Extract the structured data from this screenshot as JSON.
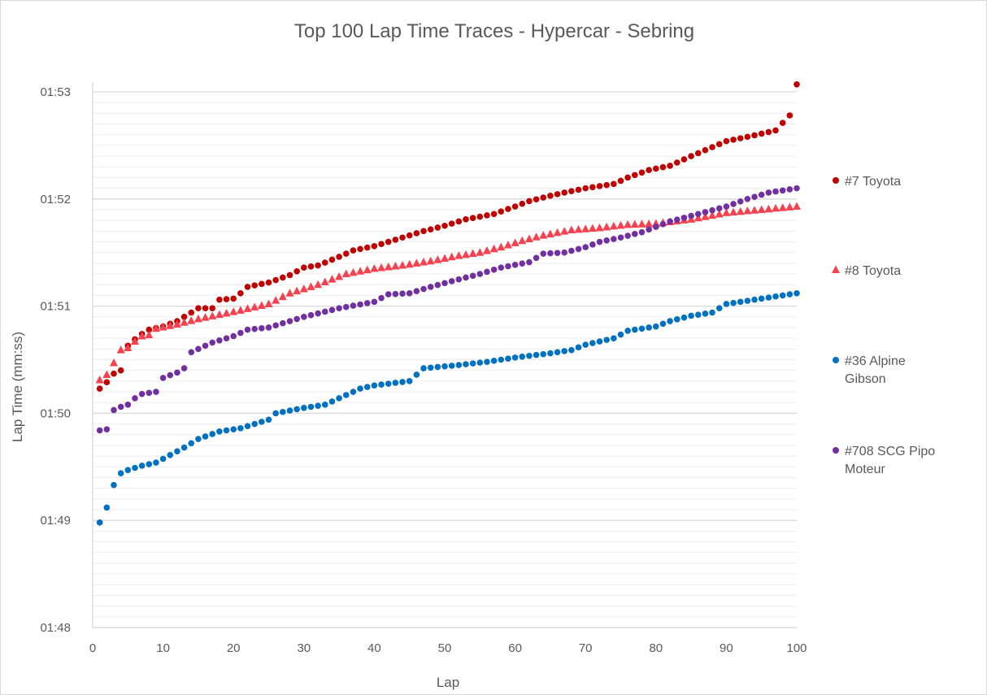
{
  "chart_data": {
    "type": "scatter",
    "title": "Top 100 Lap Time Traces - Hypercar - Sebring",
    "xlabel": "Lap",
    "ylabel": "Lap Time (mm:ss)",
    "xlim": [
      0,
      100
    ],
    "ylim": [
      108,
      113
    ],
    "x_ticks": [
      0,
      10,
      20,
      30,
      40,
      50,
      60,
      70,
      80,
      90,
      100
    ],
    "y_ticks": [
      {
        "value": 108,
        "label": "01:48"
      },
      {
        "value": 109,
        "label": "01:49"
      },
      {
        "value": 110,
        "label": "01:50"
      },
      {
        "value": 111,
        "label": "01:51"
      },
      {
        "value": 112,
        "label": "01:52"
      },
      {
        "value": 113,
        "label": "01:53"
      }
    ],
    "y_unit": "seconds",
    "grid": {
      "major": true,
      "minor_step": 0.1
    },
    "legend_position": "right",
    "series": [
      {
        "name": "#7 Toyota",
        "color": "#c00000",
        "marker": "circle",
        "knots": [
          [
            1,
            110.23
          ],
          [
            2,
            110.29
          ],
          [
            3,
            110.37
          ],
          [
            4,
            110.4
          ],
          [
            5,
            110.63
          ],
          [
            6,
            110.69
          ],
          [
            7,
            110.74
          ],
          [
            8,
            110.78
          ],
          [
            10,
            110.81
          ],
          [
            12,
            110.86
          ],
          [
            14,
            110.94
          ],
          [
            15,
            110.98
          ],
          [
            17,
            110.98
          ],
          [
            18,
            111.06
          ],
          [
            20,
            111.07
          ],
          [
            21,
            111.12
          ],
          [
            22,
            111.18
          ],
          [
            25,
            111.22
          ],
          [
            28,
            111.29
          ],
          [
            30,
            111.36
          ],
          [
            32,
            111.38
          ],
          [
            35,
            111.46
          ],
          [
            37,
            111.52
          ],
          [
            40,
            111.56
          ],
          [
            43,
            111.62
          ],
          [
            47,
            111.7
          ],
          [
            50,
            111.75
          ],
          [
            53,
            111.81
          ],
          [
            57,
            111.86
          ],
          [
            60,
            111.93
          ],
          [
            62,
            111.98
          ],
          [
            65,
            112.03
          ],
          [
            67,
            112.06
          ],
          [
            70,
            112.1
          ],
          [
            74,
            112.14
          ],
          [
            76,
            112.2
          ],
          [
            79,
            112.27
          ],
          [
            82,
            112.31
          ],
          [
            85,
            112.4
          ],
          [
            90,
            112.54
          ],
          [
            93,
            112.58
          ],
          [
            97,
            112.64
          ],
          [
            98,
            112.71
          ],
          [
            99,
            112.78
          ],
          [
            100,
            113.07
          ]
        ]
      },
      {
        "name": "#8 Toyota",
        "color": "#f8414f",
        "marker": "triangle",
        "knots": [
          [
            1,
            110.31
          ],
          [
            2,
            110.36
          ],
          [
            3,
            110.47
          ],
          [
            4,
            110.59
          ],
          [
            5,
            110.61
          ],
          [
            6,
            110.67
          ],
          [
            7,
            110.72
          ],
          [
            8,
            110.73
          ],
          [
            9,
            110.79
          ],
          [
            12,
            110.83
          ],
          [
            15,
            110.88
          ],
          [
            18,
            110.92
          ],
          [
            21,
            110.96
          ],
          [
            25,
            111.02
          ],
          [
            28,
            111.12
          ],
          [
            32,
            111.2
          ],
          [
            36,
            111.3
          ],
          [
            40,
            111.35
          ],
          [
            44,
            111.38
          ],
          [
            48,
            111.42
          ],
          [
            52,
            111.47
          ],
          [
            55,
            111.5
          ],
          [
            58,
            111.55
          ],
          [
            61,
            111.61
          ],
          [
            64,
            111.66
          ],
          [
            68,
            111.71
          ],
          [
            72,
            111.73
          ],
          [
            76,
            111.76
          ],
          [
            80,
            111.77
          ],
          [
            85,
            111.81
          ],
          [
            90,
            111.87
          ],
          [
            95,
            111.9
          ],
          [
            100,
            111.93
          ]
        ]
      },
      {
        "name": "#708 SCG Pipo Moteur",
        "color": "#7030a0",
        "marker": "circle",
        "knots": [
          [
            1,
            109.84
          ],
          [
            2,
            109.85
          ],
          [
            3,
            110.03
          ],
          [
            4,
            110.06
          ],
          [
            5,
            110.08
          ],
          [
            6,
            110.14
          ],
          [
            7,
            110.18
          ],
          [
            9,
            110.2
          ],
          [
            10,
            110.33
          ],
          [
            12,
            110.38
          ],
          [
            13,
            110.42
          ],
          [
            14,
            110.57
          ],
          [
            15,
            110.6
          ],
          [
            17,
            110.66
          ],
          [
            20,
            110.72
          ],
          [
            22,
            110.78
          ],
          [
            25,
            110.8
          ],
          [
            30,
            110.9
          ],
          [
            35,
            110.98
          ],
          [
            40,
            111.04
          ],
          [
            42,
            111.11
          ],
          [
            45,
            111.12
          ],
          [
            48,
            111.18
          ],
          [
            52,
            111.25
          ],
          [
            55,
            111.3
          ],
          [
            58,
            111.36
          ],
          [
            62,
            111.41
          ],
          [
            64,
            111.49
          ],
          [
            67,
            111.5
          ],
          [
            70,
            111.55
          ],
          [
            72,
            111.6
          ],
          [
            75,
            111.64
          ],
          [
            78,
            111.69
          ],
          [
            82,
            111.79
          ],
          [
            86,
            111.86
          ],
          [
            90,
            111.93
          ],
          [
            93,
            112.0
          ],
          [
            96,
            112.06
          ],
          [
            100,
            112.1
          ]
        ]
      },
      {
        "name": "#36 Alpine Gibson",
        "color": "#0070c0",
        "marker": "circle",
        "knots": [
          [
            1,
            108.98
          ],
          [
            2,
            109.12
          ],
          [
            3,
            109.33
          ],
          [
            4,
            109.44
          ],
          [
            5,
            109.47
          ],
          [
            7,
            109.51
          ],
          [
            9,
            109.54
          ],
          [
            11,
            109.61
          ],
          [
            13,
            109.68
          ],
          [
            15,
            109.76
          ],
          [
            18,
            109.83
          ],
          [
            21,
            109.86
          ],
          [
            25,
            109.94
          ],
          [
            26,
            110.0
          ],
          [
            30,
            110.05
          ],
          [
            33,
            110.08
          ],
          [
            35,
            110.14
          ],
          [
            38,
            110.23
          ],
          [
            40,
            110.26
          ],
          [
            45,
            110.3
          ],
          [
            46,
            110.36
          ],
          [
            47,
            110.42
          ],
          [
            52,
            110.45
          ],
          [
            56,
            110.48
          ],
          [
            60,
            110.52
          ],
          [
            65,
            110.56
          ],
          [
            68,
            110.59
          ],
          [
            70,
            110.64
          ],
          [
            74,
            110.7
          ],
          [
            76,
            110.77
          ],
          [
            80,
            110.81
          ],
          [
            82,
            110.86
          ],
          [
            85,
            110.91
          ],
          [
            88,
            110.94
          ],
          [
            90,
            111.02
          ],
          [
            95,
            111.07
          ],
          [
            100,
            111.12
          ]
        ]
      }
    ]
  }
}
